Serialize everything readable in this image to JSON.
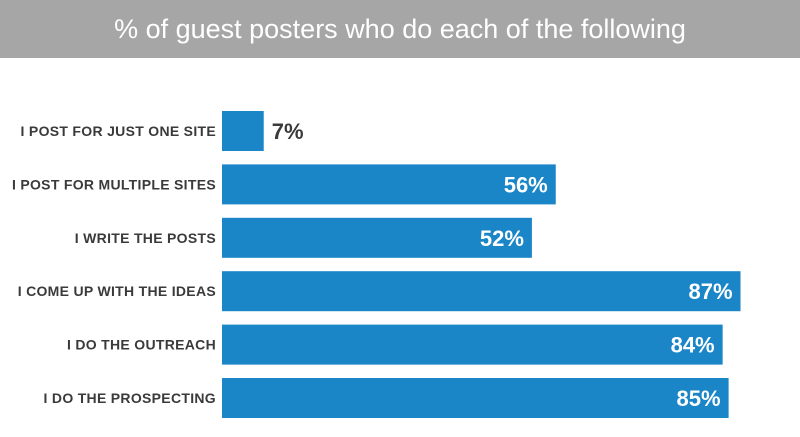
{
  "chart_data": {
    "type": "bar",
    "orientation": "horizontal",
    "title": "% of guest posters who do each of the following",
    "categories": [
      "I POST FOR JUST ONE SITE",
      "I POST FOR MULTIPLE SITES",
      "I WRITE THE  POSTS",
      "I COME UP WITH THE  IDEAS",
      "I DO THE OUTREACH",
      "I DO THE PROSPECTING"
    ],
    "values": [
      7,
      56,
      52,
      87,
      84,
      85
    ],
    "value_labels": [
      "7%",
      "56%",
      "52%",
      "87%",
      "84%",
      "85%"
    ],
    "xlim": [
      0,
      100
    ],
    "grid": false,
    "legend": "none"
  },
  "colors": {
    "bar": "#1a86c8",
    "title_bar": "#a6a6a6",
    "title_text": "#ffffff",
    "label_text": "#3a3a3a",
    "outside_value_text": "#3a3a3a",
    "inside_value_text": "#ffffff"
  }
}
